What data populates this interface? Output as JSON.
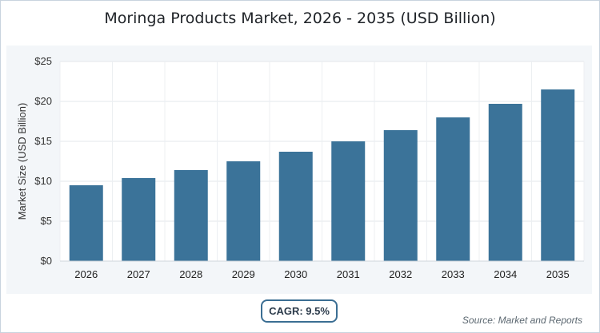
{
  "chart_data": {
    "type": "bar",
    "title": "Moringa Products Market, 2026 - 2035 (USD Billion)",
    "xlabel": "",
    "ylabel": "Market Size (USD Billion)",
    "categories": [
      "2026",
      "2027",
      "2028",
      "2029",
      "2030",
      "2031",
      "2032",
      "2033",
      "2034",
      "2035"
    ],
    "values": [
      9.5,
      10.4,
      11.4,
      12.5,
      13.7,
      15.0,
      16.4,
      18.0,
      19.7,
      21.5
    ],
    "ylim": [
      0,
      25
    ],
    "yticks": [
      0,
      5,
      10,
      15,
      20,
      25
    ],
    "ytick_labels": [
      "$0",
      "$5",
      "$10",
      "$15",
      "$20",
      "$25"
    ],
    "grid": true,
    "bar_color": "#3b7399"
  },
  "cagr_label": "CAGR: 9.5%",
  "source_label": "Source: Market and Reports"
}
